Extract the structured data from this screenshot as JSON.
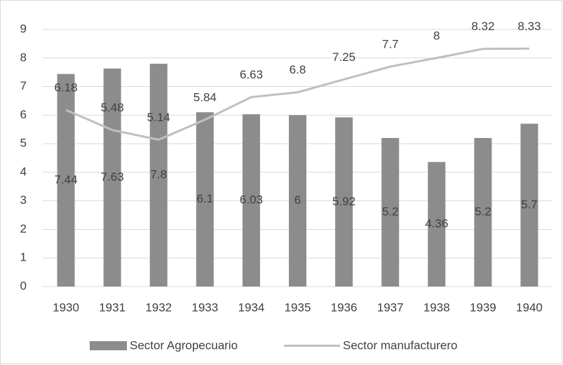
{
  "chart_data": {
    "type": "combo",
    "categories": [
      "1930",
      "1931",
      "1932",
      "1933",
      "1934",
      "1935",
      "1936",
      "1937",
      "1938",
      "1939",
      "1940"
    ],
    "series": [
      {
        "name": "Sector Agropecuario",
        "type": "bar",
        "color": "#8c8c8c",
        "values": [
          7.44,
          7.63,
          7.8,
          6.1,
          6.03,
          6,
          5.92,
          5.2,
          4.36,
          5.2,
          5.7
        ]
      },
      {
        "name": "Sector manufacturero",
        "type": "line",
        "color": "#bfbfbf",
        "values": [
          6.18,
          5.48,
          5.14,
          5.84,
          6.63,
          6.8,
          7.25,
          7.7,
          8,
          8.32,
          8.33
        ]
      }
    ],
    "ylim": [
      0,
      9
    ],
    "yticks": [
      0,
      1,
      2,
      3,
      4,
      5,
      6,
      7,
      8,
      9
    ],
    "grid": true,
    "legend": "bottom"
  }
}
